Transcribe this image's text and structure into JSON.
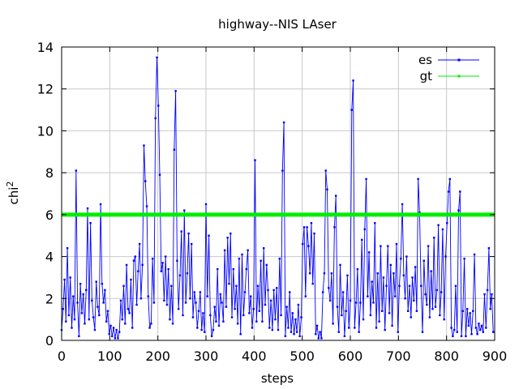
{
  "chart_data": {
    "type": "line",
    "title": "highway--NIS LAser",
    "xlabel": "steps",
    "ylabel": "chi",
    "ylabel_superscript": "2",
    "xlim": [
      0,
      900
    ],
    "ylim": [
      0,
      14
    ],
    "xticks": [
      "0",
      "100",
      "200",
      "300",
      "400",
      "500",
      "600",
      "700",
      "800",
      "900"
    ],
    "yticks": [
      "0",
      "2",
      "4",
      "6",
      "8",
      "10",
      "12",
      "14"
    ],
    "grid": true,
    "legend_position": "top-right",
    "series": [
      {
        "name": "es",
        "color": "#0000ff",
        "points": [
          [
            0,
            0.5
          ],
          [
            3,
            1.5
          ],
          [
            6,
            2.9
          ],
          [
            9,
            0.9
          ],
          [
            12,
            4.4
          ],
          [
            15,
            1.2
          ],
          [
            18,
            3.0
          ],
          [
            21,
            0.6
          ],
          [
            24,
            2.1
          ],
          [
            27,
            1.0
          ],
          [
            30,
            8.1
          ],
          [
            33,
            1.8
          ],
          [
            36,
            0.2
          ],
          [
            39,
            2.7
          ],
          [
            42,
            1.3
          ],
          [
            45,
            2.2
          ],
          [
            48,
            0.8
          ],
          [
            51,
            2.4
          ],
          [
            54,
            6.3
          ],
          [
            57,
            1.0
          ],
          [
            60,
            5.6
          ],
          [
            63,
            1.9
          ],
          [
            66,
            1.1
          ],
          [
            69,
            0.5
          ],
          [
            72,
            2.8
          ],
          [
            75,
            1.6
          ],
          [
            78,
            1.2
          ],
          [
            81,
            6.5
          ],
          [
            84,
            2.7
          ],
          [
            87,
            1.8
          ],
          [
            90,
            2.4
          ],
          [
            93,
            0.9
          ],
          [
            96,
            1.4
          ],
          [
            99,
            0.3
          ],
          [
            102,
            0.7
          ],
          [
            105,
            0.2
          ],
          [
            108,
            0.6
          ],
          [
            111,
            0.1
          ],
          [
            114,
            0.5
          ],
          [
            117,
            0.1
          ],
          [
            120,
            0.4
          ],
          [
            123,
            1.9
          ],
          [
            126,
            1.0
          ],
          [
            129,
            2.6
          ],
          [
            132,
            0.8
          ],
          [
            135,
            3.6
          ],
          [
            138,
            1.5
          ],
          [
            141,
            1.3
          ],
          [
            144,
            2.9
          ],
          [
            147,
            0.6
          ],
          [
            150,
            3.8
          ],
          [
            153,
            4.0
          ],
          [
            156,
            1.7
          ],
          [
            159,
            3.3
          ],
          [
            162,
            4.6
          ],
          [
            165,
            2.0
          ],
          [
            168,
            3.6
          ],
          [
            171,
            9.3
          ],
          [
            174,
            7.6
          ],
          [
            177,
            6.4
          ],
          [
            180,
            2.1
          ],
          [
            183,
            0.6
          ],
          [
            186,
            0.8
          ],
          [
            189,
            3.9
          ],
          [
            192,
            1.8
          ],
          [
            195,
            10.6
          ],
          [
            198,
            13.5
          ],
          [
            201,
            11.2
          ],
          [
            204,
            7.9
          ],
          [
            207,
            3.3
          ],
          [
            210,
            3.7
          ],
          [
            213,
            1.9
          ],
          [
            216,
            4.0
          ],
          [
            219,
            1.7
          ],
          [
            222,
            3.4
          ],
          [
            225,
            1.0
          ],
          [
            228,
            2.6
          ],
          [
            231,
            0.8
          ],
          [
            234,
            9.1
          ],
          [
            237,
            11.9
          ],
          [
            240,
            3.8
          ],
          [
            243,
            1.5
          ],
          [
            246,
            3.1
          ],
          [
            249,
            5.2
          ],
          [
            252,
            1.2
          ],
          [
            255,
            6.2
          ],
          [
            258,
            1.8
          ],
          [
            261,
            3.2
          ],
          [
            264,
            5.1
          ],
          [
            267,
            2.0
          ],
          [
            270,
            4.6
          ],
          [
            273,
            1.1
          ],
          [
            276,
            2.3
          ],
          [
            279,
            1.8
          ],
          [
            282,
            0.6
          ],
          [
            285,
            1.4
          ],
          [
            288,
            2.3
          ],
          [
            291,
            0.5
          ],
          [
            294,
            1.3
          ],
          [
            297,
            0.4
          ],
          [
            300,
            6.5
          ],
          [
            303,
            2.1
          ],
          [
            306,
            5.0
          ],
          [
            309,
            1.2
          ],
          [
            312,
            0.2
          ],
          [
            315,
            0.5
          ],
          [
            318,
            1.6
          ],
          [
            321,
            0.9
          ],
          [
            324,
            3.4
          ],
          [
            327,
            0.7
          ],
          [
            330,
            2.2
          ],
          [
            333,
            1.8
          ],
          [
            336,
            0.9
          ],
          [
            339,
            4.3
          ],
          [
            342,
            1.6
          ],
          [
            345,
            4.9
          ],
          [
            348,
            2.7
          ],
          [
            351,
            5.1
          ],
          [
            354,
            1.1
          ],
          [
            357,
            3.4
          ],
          [
            360,
            1.5
          ],
          [
            363,
            2.6
          ],
          [
            366,
            0.8
          ],
          [
            369,
            3.9
          ],
          [
            372,
            0.3
          ],
          [
            375,
            4.1
          ],
          [
            378,
            1.2
          ],
          [
            381,
            2.3
          ],
          [
            384,
            3.4
          ],
          [
            387,
            4.3
          ],
          [
            390,
            1.3
          ],
          [
            393,
            2.1
          ],
          [
            396,
            0.6
          ],
          [
            399,
            1.5
          ],
          [
            402,
            8.6
          ],
          [
            405,
            0.9
          ],
          [
            408,
            2.6
          ],
          [
            411,
            1.4
          ],
          [
            414,
            3.8
          ],
          [
            417,
            0.9
          ],
          [
            420,
            4.4
          ],
          [
            423,
            1.7
          ],
          [
            426,
            3.6
          ],
          [
            429,
            2.4
          ],
          [
            432,
            0.6
          ],
          [
            435,
            1.9
          ],
          [
            438,
            0.5
          ],
          [
            441,
            2.4
          ],
          [
            444,
            1.0
          ],
          [
            447,
            2.5
          ],
          [
            450,
            0.5
          ],
          [
            453,
            3.9
          ],
          [
            456,
            1.2
          ],
          [
            459,
            8.1
          ],
          [
            462,
            10.4
          ],
          [
            465,
            0.2
          ],
          [
            468,
            1.6
          ],
          [
            471,
            0.6
          ],
          [
            474,
            2.3
          ],
          [
            477,
            0.4
          ],
          [
            480,
            1.3
          ],
          [
            483,
            0.3
          ],
          [
            486,
            1.0
          ],
          [
            489,
            0.4
          ],
          [
            492,
            1.7
          ],
          [
            495,
            0.2
          ],
          [
            498,
            1.1
          ],
          [
            501,
            4.6
          ],
          [
            504,
            5.4
          ],
          [
            507,
            2.1
          ],
          [
            510,
            5.4
          ],
          [
            513,
            4.5
          ],
          [
            516,
            3.2
          ],
          [
            519,
            5.6
          ],
          [
            522,
            2.7
          ],
          [
            525,
            5.1
          ],
          [
            528,
            0.3
          ],
          [
            531,
            0.7
          ],
          [
            534,
            0.1
          ],
          [
            537,
            0.4
          ],
          [
            540,
            0.1
          ],
          [
            543,
            2.3
          ],
          [
            546,
            3.2
          ],
          [
            549,
            8.1
          ],
          [
            552,
            7.2
          ],
          [
            555,
            2.5
          ],
          [
            558,
            1.9
          ],
          [
            561,
            3.2
          ],
          [
            564,
            0.8
          ],
          [
            567,
            5.4
          ],
          [
            570,
            6.9
          ],
          [
            573,
            1.6
          ],
          [
            576,
            0.4
          ],
          [
            579,
            3.6
          ],
          [
            582,
            1.2
          ],
          [
            585,
            2.3
          ],
          [
            588,
            0.2
          ],
          [
            591,
            1.4
          ],
          [
            594,
            3.1
          ],
          [
            597,
            0.6
          ],
          [
            600,
            1.9
          ],
          [
            603,
            11.0
          ],
          [
            606,
            12.4
          ],
          [
            609,
            0.6
          ],
          [
            612,
            1.8
          ],
          [
            615,
            3.4
          ],
          [
            618,
            0.4
          ],
          [
            621,
            1.8
          ],
          [
            624,
            4.8
          ],
          [
            627,
            1.0
          ],
          [
            630,
            5.3
          ],
          [
            633,
            7.7
          ],
          [
            636,
            2.1
          ],
          [
            639,
            4.2
          ],
          [
            642,
            1.2
          ],
          [
            645,
            2.8
          ],
          [
            648,
            1.8
          ],
          [
            651,
            5.6
          ],
          [
            654,
            0.6
          ],
          [
            657,
            3.2
          ],
          [
            660,
            0.9
          ],
          [
            663,
            4.5
          ],
          [
            666,
            1.4
          ],
          [
            669,
            3.0
          ],
          [
            672,
            0.5
          ],
          [
            675,
            2.6
          ],
          [
            678,
            4.5
          ],
          [
            681,
            1.3
          ],
          [
            684,
            3.6
          ],
          [
            687,
            0.7
          ],
          [
            690,
            3.2
          ],
          [
            693,
            2.1
          ],
          [
            696,
            4.6
          ],
          [
            699,
            0.4
          ],
          [
            702,
            2.6
          ],
          [
            705,
            3.9
          ],
          [
            708,
            6.5
          ],
          [
            711,
            3.1
          ],
          [
            714,
            2.0
          ],
          [
            717,
            4.0
          ],
          [
            720,
            1.4
          ],
          [
            723,
            2.6
          ],
          [
            726,
            1.1
          ],
          [
            729,
            3.0
          ],
          [
            732,
            1.9
          ],
          [
            735,
            3.5
          ],
          [
            738,
            1.4
          ],
          [
            741,
            7.7
          ],
          [
            744,
            6.1
          ],
          [
            747,
            2.6
          ],
          [
            750,
            0.4
          ],
          [
            753,
            3.8
          ],
          [
            756,
            2.2
          ],
          [
            759,
            1.7
          ],
          [
            762,
            4.5
          ],
          [
            765,
            1.1
          ],
          [
            768,
            3.3
          ],
          [
            771,
            1.5
          ],
          [
            774,
            4.9
          ],
          [
            777,
            1.6
          ],
          [
            780,
            2.4
          ],
          [
            783,
            5.5
          ],
          [
            786,
            1.2
          ],
          [
            789,
            2.3
          ],
          [
            792,
            5.3
          ],
          [
            795,
            1.0
          ],
          [
            798,
            4.0
          ],
          [
            801,
            5.6
          ],
          [
            804,
            7.1
          ],
          [
            807,
            7.7
          ],
          [
            810,
            0.6
          ],
          [
            813,
            0.2
          ],
          [
            816,
            0.5
          ],
          [
            819,
            2.6
          ],
          [
            822,
            0.4
          ],
          [
            825,
            6.2
          ],
          [
            828,
            7.1
          ],
          [
            831,
            0.2
          ],
          [
            834,
            1.4
          ],
          [
            837,
            3.9
          ],
          [
            840,
            0.2
          ],
          [
            843,
            1.5
          ],
          [
            846,
            0.7
          ],
          [
            849,
            1.3
          ],
          [
            852,
            0.3
          ],
          [
            855,
            1.4
          ],
          [
            858,
            4.1
          ],
          [
            861,
            0.6
          ],
          [
            864,
            0.3
          ],
          [
            867,
            0.8
          ],
          [
            870,
            0.5
          ],
          [
            873,
            0.7
          ],
          [
            876,
            0.4
          ],
          [
            879,
            2.2
          ],
          [
            882,
            0.6
          ],
          [
            885,
            2.4
          ],
          [
            888,
            4.4
          ],
          [
            891,
            1.5
          ],
          [
            894,
            2.2
          ],
          [
            897,
            0.4
          ]
        ]
      },
      {
        "name": "gt",
        "color": "#00ee00",
        "points": [
          [
            0,
            6.0
          ],
          [
            900,
            6.0
          ]
        ]
      }
    ]
  }
}
